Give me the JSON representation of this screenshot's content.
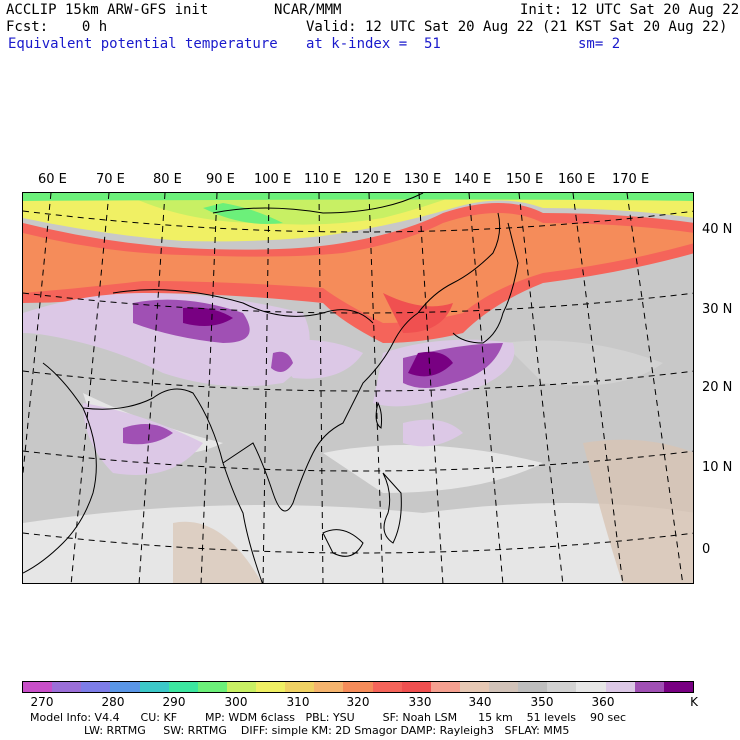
{
  "header": {
    "line1_left": "ACCLIP 15km ARW-GFS init",
    "line1_center": "NCAR/MMM",
    "line1_right": "Init: 12 UTC Sat 20 Aug 22",
    "line2_left": "Fcst:    0 h",
    "line2_right": "Valid: 12 UTC Sat 20 Aug 22 (21 KST Sat 20 Aug 22)",
    "line3_left": "Equivalent potential temperature",
    "line3_center": "at k-index =  51",
    "line3_right": "sm= 2"
  },
  "map": {
    "lon_labels": [
      "60 E",
      "70 E",
      "80 E",
      "90 E",
      "100 E",
      "110 E",
      "120 E",
      "130 E",
      "140 E",
      "150 E",
      "160 E",
      "170 E"
    ],
    "lat_labels": [
      "40 N",
      "30 N",
      "20 N",
      "10 N",
      "0"
    ]
  },
  "colorbar": {
    "colors": [
      "#c84fc8",
      "#9b6fd8",
      "#7d7de8",
      "#5a96e6",
      "#3cc8c8",
      "#3ce6a0",
      "#6cf07a",
      "#c8f064",
      "#f0f064",
      "#f0d264",
      "#f5b46e",
      "#f58c5a",
      "#f5645a",
      "#f05050",
      "#f5a090",
      "#e6c8b4",
      "#d2c3b9",
      "#bebebe",
      "#d2d2d2",
      "#e6e6e6",
      "#dcc8e6",
      "#a050b4",
      "#780082"
    ],
    "labels": [
      "270",
      "280",
      "290",
      "300",
      "310",
      "320",
      "330",
      "340",
      "350",
      "360",
      "K"
    ]
  },
  "footer": {
    "line1": "Model Info: V4.4      CU: KF        MP: WDM 6class   PBL: YSU        SF: Noah LSM      15 km    51 levels    90 sec",
    "line2": "LW: RRTMG     SW: RRTMG    DIFF: simple KM: 2D Smagor DAMP: Rayleigh3   SFLAY: MM5"
  }
}
